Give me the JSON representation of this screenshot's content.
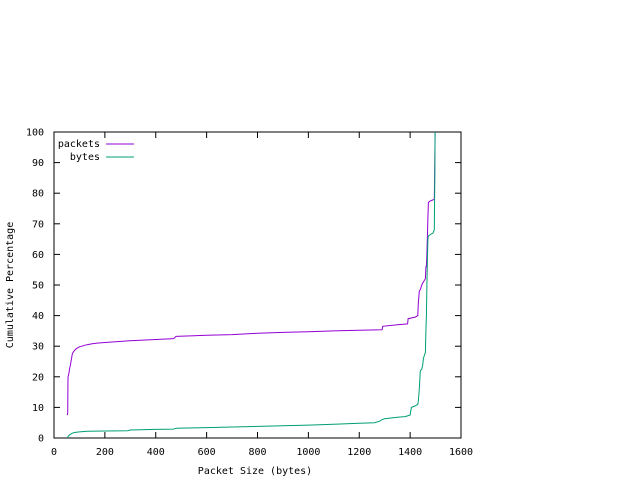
{
  "chart_data": {
    "type": "line",
    "title": "",
    "xlabel": "Packet Size (bytes)",
    "ylabel": "Cumulative Percentage",
    "xlim": [
      0,
      1600
    ],
    "ylim": [
      0,
      100
    ],
    "xticks": [
      0,
      200,
      400,
      600,
      800,
      1000,
      1200,
      1400,
      1600
    ],
    "yticks": [
      0,
      10,
      20,
      30,
      40,
      50,
      60,
      70,
      80,
      90,
      100
    ],
    "grid": false,
    "legend_position": "top-left",
    "series": [
      {
        "name": "packets",
        "color": "#9400d3",
        "points": [
          [
            52,
            7.5
          ],
          [
            54,
            8
          ],
          [
            55,
            20
          ],
          [
            57,
            20.5
          ],
          [
            60,
            22
          ],
          [
            62,
            23
          ],
          [
            65,
            24
          ],
          [
            67,
            25
          ],
          [
            70,
            26.5
          ],
          [
            72,
            27.5
          ],
          [
            75,
            28
          ],
          [
            80,
            28.5
          ],
          [
            85,
            29
          ],
          [
            90,
            29.3
          ],
          [
            100,
            29.8
          ],
          [
            110,
            30
          ],
          [
            120,
            30.3
          ],
          [
            130,
            30.5
          ],
          [
            150,
            30.8
          ],
          [
            170,
            31
          ],
          [
            200,
            31.2
          ],
          [
            250,
            31.5
          ],
          [
            300,
            31.8
          ],
          [
            350,
            32
          ],
          [
            400,
            32.2
          ],
          [
            470,
            32.5
          ],
          [
            480,
            33.2
          ],
          [
            550,
            33.4
          ],
          [
            600,
            33.6
          ],
          [
            700,
            33.8
          ],
          [
            800,
            34.2
          ],
          [
            900,
            34.5
          ],
          [
            1000,
            34.7
          ],
          [
            1100,
            35
          ],
          [
            1200,
            35.2
          ],
          [
            1290,
            35.4
          ],
          [
            1292,
            36.5
          ],
          [
            1350,
            37
          ],
          [
            1390,
            37.3
          ],
          [
            1392,
            39
          ],
          [
            1420,
            39.5
          ],
          [
            1430,
            40
          ],
          [
            1432,
            44
          ],
          [
            1436,
            48
          ],
          [
            1440,
            48.5
          ],
          [
            1446,
            50
          ],
          [
            1452,
            51
          ],
          [
            1460,
            52
          ],
          [
            1462,
            56
          ],
          [
            1464,
            56
          ],
          [
            1466,
            60
          ],
          [
            1468,
            66
          ],
          [
            1470,
            72
          ],
          [
            1472,
            77
          ],
          [
            1480,
            77.5
          ],
          [
            1490,
            77.8
          ],
          [
            1495,
            78
          ],
          [
            1497,
            90
          ],
          [
            1498,
            100
          ]
        ]
      },
      {
        "name": "bytes",
        "color": "#009e73",
        "points": [
          [
            52,
            0
          ],
          [
            55,
            0.5
          ],
          [
            60,
            1
          ],
          [
            70,
            1.5
          ],
          [
            80,
            1.8
          ],
          [
            100,
            2
          ],
          [
            130,
            2.2
          ],
          [
            200,
            2.3
          ],
          [
            290,
            2.4
          ],
          [
            300,
            2.6
          ],
          [
            400,
            2.8
          ],
          [
            470,
            2.9
          ],
          [
            480,
            3.2
          ],
          [
            550,
            3.3
          ],
          [
            600,
            3.4
          ],
          [
            700,
            3.6
          ],
          [
            800,
            3.8
          ],
          [
            900,
            4
          ],
          [
            1000,
            4.2
          ],
          [
            1100,
            4.5
          ],
          [
            1200,
            4.8
          ],
          [
            1260,
            5
          ],
          [
            1280,
            5.5
          ],
          [
            1290,
            6
          ],
          [
            1300,
            6.3
          ],
          [
            1350,
            6.8
          ],
          [
            1380,
            7
          ],
          [
            1400,
            7.5
          ],
          [
            1405,
            10
          ],
          [
            1420,
            10.5
          ],
          [
            1430,
            11
          ],
          [
            1432,
            12
          ],
          [
            1436,
            16
          ],
          [
            1440,
            22
          ],
          [
            1446,
            22.5
          ],
          [
            1450,
            24
          ],
          [
            1452,
            26
          ],
          [
            1456,
            27
          ],
          [
            1460,
            28
          ],
          [
            1462,
            35
          ],
          [
            1464,
            40
          ],
          [
            1466,
            50
          ],
          [
            1468,
            58
          ],
          [
            1470,
            65
          ],
          [
            1472,
            66
          ],
          [
            1480,
            66.5
          ],
          [
            1490,
            67
          ],
          [
            1495,
            68
          ],
          [
            1497,
            85
          ],
          [
            1498,
            100
          ]
        ]
      }
    ]
  }
}
